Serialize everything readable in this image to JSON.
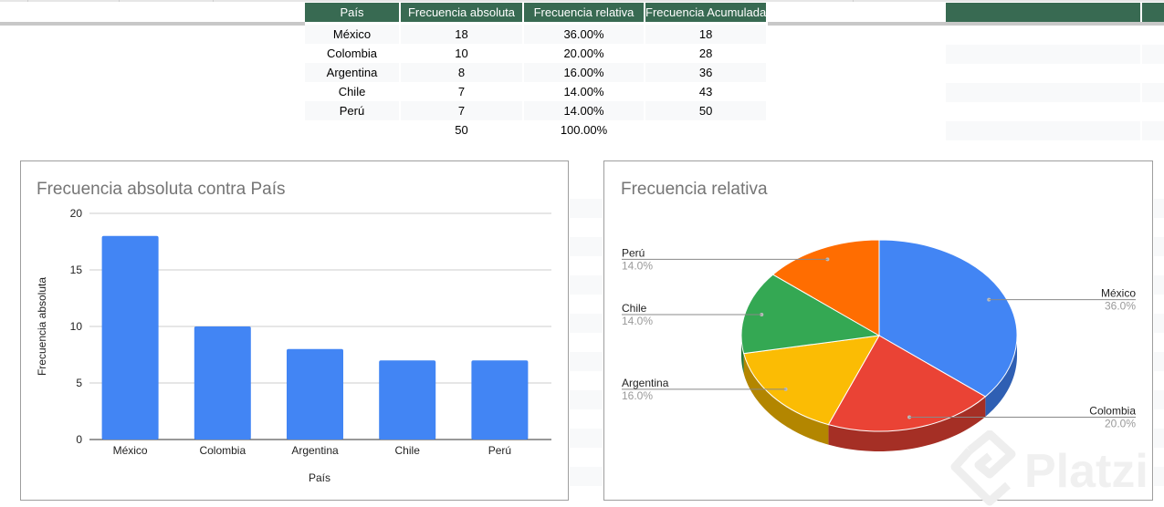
{
  "table": {
    "headers": [
      "País",
      "Frecuencia absoluta",
      "Frecuencia relativa",
      "Frecuencia Acumulada"
    ],
    "rows": [
      [
        "México",
        "18",
        "36.00%",
        "18"
      ],
      [
        "Colombia",
        "10",
        "20.00%",
        "28"
      ],
      [
        "Argentina",
        "8",
        "16.00%",
        "36"
      ],
      [
        "Chile",
        "7",
        "14.00%",
        "43"
      ],
      [
        "Perú",
        "7",
        "14.00%",
        "50"
      ]
    ],
    "totals": [
      "",
      "50",
      "100.00%",
      ""
    ]
  },
  "colors": {
    "header_bg": "#386a52",
    "bar": "#4285f4",
    "pie": [
      "#4285f4",
      "#ea4335",
      "#fbbc04",
      "#34a853",
      "#ff6d01"
    ],
    "pie_side": [
      "#2f5fb3",
      "#a52f25",
      "#b38600",
      "#247539",
      "#b54d00"
    ]
  },
  "chart_data": [
    {
      "type": "bar",
      "title": "Frecuencia absoluta contra País",
      "categories": [
        "México",
        "Colombia",
        "Argentina",
        "Chile",
        "Perú"
      ],
      "values": [
        18,
        10,
        8,
        7,
        7
      ],
      "xlabel": "País",
      "ylabel": "Frecuencia absoluta",
      "ylim": [
        0,
        20
      ],
      "yticks": [
        0,
        5,
        10,
        15,
        20
      ],
      "grid": true
    },
    {
      "type": "pie",
      "title": "Frecuencia relativa",
      "labels": [
        "México",
        "Colombia",
        "Argentina",
        "Chile",
        "Perú"
      ],
      "values": [
        36.0,
        20.0,
        16.0,
        14.0,
        14.0
      ],
      "value_labels": [
        "36.0%",
        "20.0%",
        "16.0%",
        "14.0%",
        "14.0%"
      ],
      "style": "3d",
      "legend": "labeled"
    }
  ],
  "watermark": "Platzi"
}
